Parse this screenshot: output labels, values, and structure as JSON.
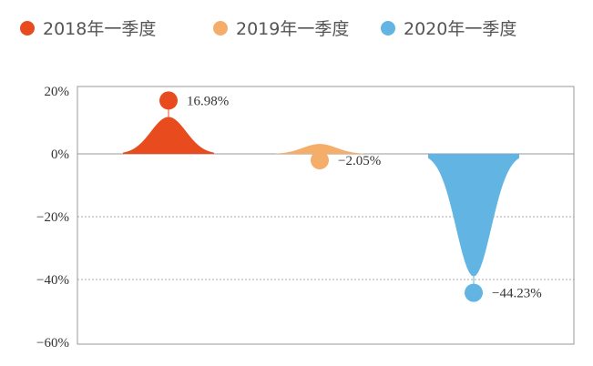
{
  "chart_data": {
    "type": "area",
    "categories": [
      "2018年一季度",
      "2019年一季度",
      "2020年一季度"
    ],
    "values": [
      16.98,
      -2.05,
      -44.23
    ],
    "value_labels": [
      "16.98%",
      "−2.05%",
      "−44.23%"
    ],
    "colors": [
      "#e84c1e",
      "#f5ae6a",
      "#62b4e2"
    ],
    "ylim": [
      -60,
      20
    ],
    "yticks": [
      20,
      0,
      -20,
      -40,
      -60
    ],
    "ytick_labels": [
      "20%",
      "0%",
      "−20%",
      "−40%",
      "−60%"
    ],
    "legend_position": "top",
    "grid": "dotted horizontal lines"
  }
}
